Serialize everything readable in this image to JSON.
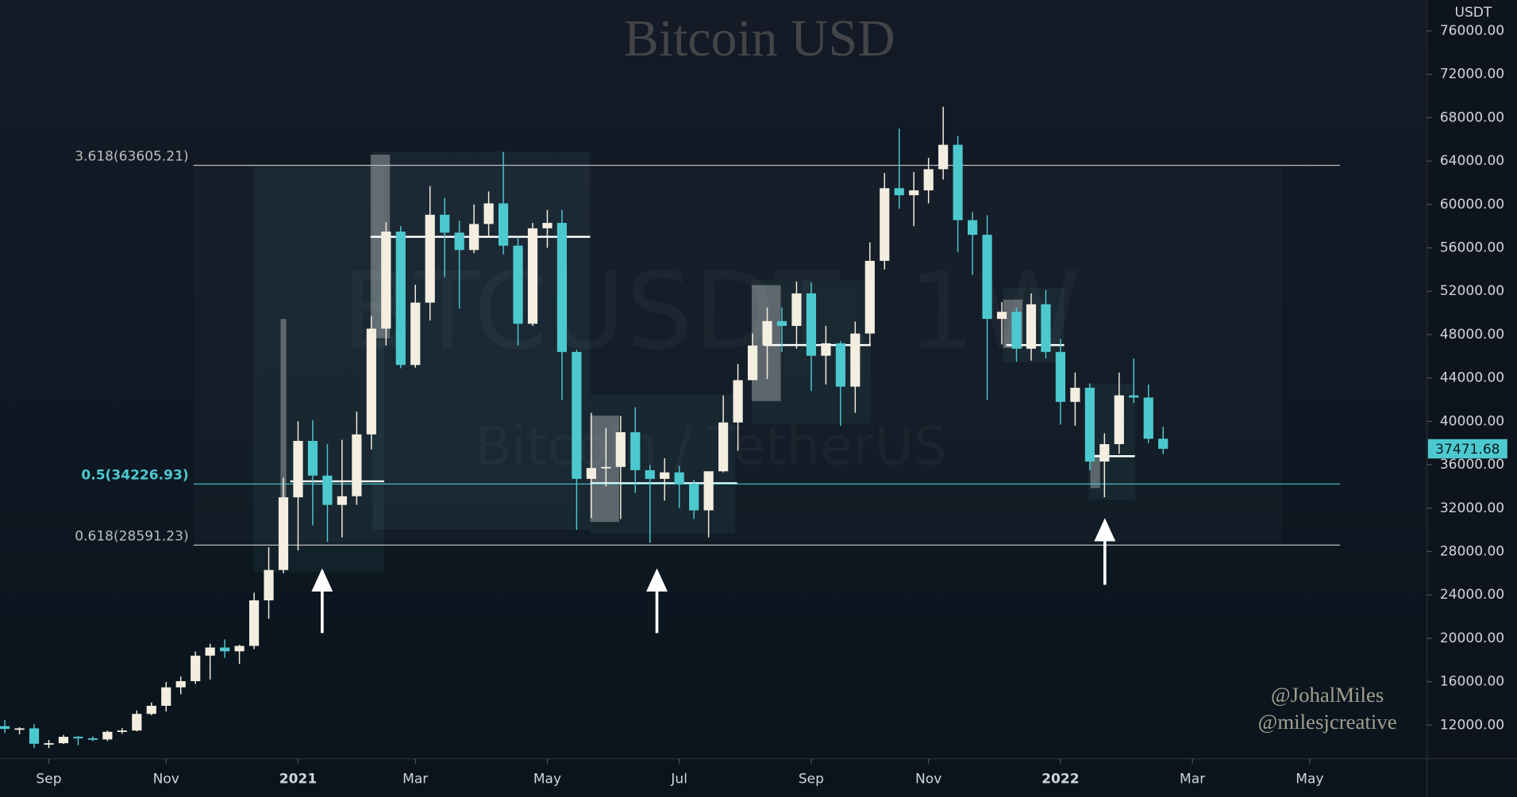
{
  "chart_data": {
    "type": "candlestick",
    "title": "Bitcoin USD",
    "currency": "USDT",
    "watermark": [
      "BTCUSDT, 1W",
      "Bitcoin / TetherUS"
    ],
    "credits": [
      "@JohalMiles",
      "@milesjcreative"
    ],
    "up_color": "#f3eee0",
    "down_color": "#4cc9cf",
    "grid": false,
    "xlim": [
      -0.33,
      97.0
    ],
    "ylim": [
      8900,
      78850
    ],
    "xticks": [
      {
        "value": 3,
        "label": "Sep"
      },
      {
        "value": 11,
        "label": "Nov"
      },
      {
        "value": 20,
        "label": "2021"
      },
      {
        "value": 28,
        "label": "Mar"
      },
      {
        "value": 37,
        "label": "May"
      },
      {
        "value": 46,
        "label": "Jul"
      },
      {
        "value": 55,
        "label": "Sep"
      },
      {
        "value": 63,
        "label": "Nov"
      },
      {
        "value": 72,
        "label": "2022"
      },
      {
        "value": 81,
        "label": "Mar"
      },
      {
        "value": 89,
        "label": "May"
      }
    ],
    "yticks": [
      {
        "value": 12000,
        "label": "12000.00"
      },
      {
        "value": 16000,
        "label": "16000.00"
      },
      {
        "value": 20000,
        "label": "20000.00"
      },
      {
        "value": 24000,
        "label": "24000.00"
      },
      {
        "value": 28000,
        "label": "28000.00"
      },
      {
        "value": 32000,
        "label": "32000.00"
      },
      {
        "value": 36000,
        "label": "36000.00"
      },
      {
        "value": 40000,
        "label": "40000.00"
      },
      {
        "value": 44000,
        "label": "44000.00"
      },
      {
        "value": 48000,
        "label": "48000.00"
      },
      {
        "value": 52000,
        "label": "52000.00"
      },
      {
        "value": 56000,
        "label": "56000.00"
      },
      {
        "value": 60000,
        "label": "60000.00"
      },
      {
        "value": 64000,
        "label": "64000.00"
      },
      {
        "value": 68000,
        "label": "68000.00"
      },
      {
        "value": 72000,
        "label": "72000.00"
      },
      {
        "value": 76000,
        "label": "76000.00"
      }
    ],
    "levels": [
      {
        "label": "3.618(63605.21)",
        "value": 63605.21,
        "color": "#bdbdbd"
      },
      {
        "label": "0.5(34226.93)",
        "value": 34226.93,
        "color": "#4cc9cf"
      },
      {
        "label": "0.618(28591.23)",
        "value": 28591.23,
        "color": "#bdbdbd"
      }
    ],
    "open": [
      11900,
      11650,
      11700,
      10280,
      10330,
      10920,
      10780,
      10680,
      11380,
      11500,
      13030,
      13780,
      15480,
      16050,
      18400,
      19150,
      18800,
      19300,
      23500,
      26300,
      33000,
      38200,
      35000,
      32300,
      33100,
      38800,
      48550,
      57500,
      45200,
      50950,
      59050,
      57400,
      55800,
      58200,
      60100,
      56200,
      49000,
      57800,
      58300,
      46400,
      34700,
      35700,
      35800,
      39000,
      35500,
      34700,
      35300,
      34250,
      31800,
      35400,
      39900,
      43800,
      47000,
      49250,
      48800,
      51800,
      46050,
      47200,
      43200,
      48100,
      54800,
      61500,
      60850,
      61300,
      63250,
      65500,
      58550,
      57200,
      49450,
      50100,
      46700,
      50800,
      46400,
      41800,
      43100,
      36300,
      37900,
      42400,
      42200,
      38400
    ],
    "high": [
      12470,
      11800,
      12090,
      10630,
      11100,
      11000,
      10950,
      11490,
      11720,
      13350,
      14090,
      15970,
      16490,
      18790,
      19500,
      19900,
      19400,
      24200,
      28400,
      34800,
      40000,
      40100,
      37900,
      38300,
      40900,
      49700,
      58350,
      58000,
      52600,
      61700,
      60600,
      58500,
      60000,
      61200,
      64850,
      57000,
      58300,
      59500,
      59500,
      46600,
      40800,
      39400,
      40500,
      41300,
      36000,
      36600,
      35900,
      34600,
      35400,
      42400,
      45300,
      48100,
      50500,
      50500,
      52900,
      52800,
      48800,
      47400,
      49200,
      56500,
      62900,
      67000,
      63000,
      64300,
      69000,
      66300,
      59300,
      59000,
      51000,
      50500,
      51800,
      52100,
      47600,
      44500,
      43500,
      38900,
      44500,
      45800,
      43400,
      39500
    ],
    "low": [
      11280,
      11150,
      9880,
      9880,
      10250,
      10140,
      10520,
      10530,
      11200,
      11420,
      12900,
      13250,
      14840,
      15800,
      16200,
      18200,
      17650,
      19000,
      21800,
      26000,
      28100,
      30400,
      28900,
      29300,
      32300,
      37400,
      47000,
      44900,
      44950,
      49300,
      53300,
      50400,
      55500,
      57000,
      55400,
      47000,
      48800,
      56000,
      42000,
      30000,
      31100,
      34000,
      31000,
      33400,
      28800,
      32700,
      32000,
      31000,
      29300,
      35300,
      37300,
      43800,
      43900,
      46400,
      46700,
      42800,
      43400,
      39600,
      40800,
      47100,
      54000,
      59600,
      58000,
      60100,
      62300,
      55600,
      53500,
      42000,
      47100,
      45500,
      45600,
      45800,
      39700,
      39600,
      35500,
      33000,
      37000,
      41700,
      38000,
      37000
    ],
    "close": [
      11650,
      11700,
      10280,
      10330,
      10920,
      10780,
      10680,
      11380,
      11500,
      13030,
      13780,
      15480,
      16050,
      18400,
      19150,
      18800,
      19300,
      23500,
      26300,
      33000,
      38200,
      35000,
      32300,
      33100,
      38800,
      48550,
      57500,
      45200,
      50950,
      59050,
      57400,
      55800,
      58200,
      60100,
      56200,
      49000,
      57800,
      58300,
      46400,
      34700,
      35700,
      35800,
      39000,
      35500,
      34700,
      35300,
      34250,
      31800,
      35400,
      39900,
      43800,
      47000,
      49250,
      48800,
      51800,
      46050,
      47200,
      43200,
      48100,
      54800,
      61500,
      60850,
      61300,
      63250,
      65500,
      58550,
      57200,
      49450,
      50100,
      46700,
      50800,
      46400,
      41800,
      43100,
      36300,
      37900,
      42400,
      42200,
      38400,
      37471.68
    ]
  }
}
